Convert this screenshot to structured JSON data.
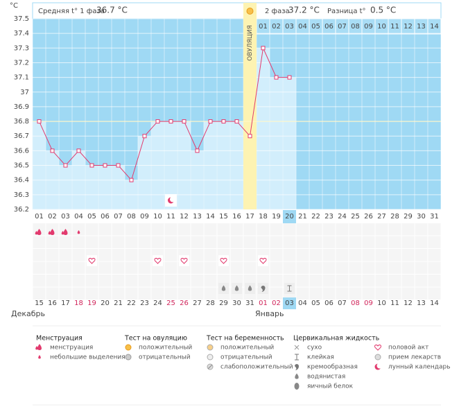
{
  "chart_data": {
    "type": "line",
    "y_unit": "°C",
    "header": {
      "phase1_label": "Средняя t° 1 фаза",
      "phase1_value": "36.7 °C",
      "phase2_label": "2 фаза",
      "phase2_value": "37.2 °C",
      "diff_label": "Разница t°",
      "diff_value": "0.5 °C"
    },
    "ovulation_label": "ОВУЛЯЦИЯ",
    "ovulation_day": "17",
    "current_day": "20",
    "categories": [
      "01",
      "02",
      "03",
      "04",
      "05",
      "06",
      "07",
      "08",
      "09",
      "10",
      "11",
      "12",
      "13",
      "14",
      "15",
      "16",
      "17",
      "18",
      "19",
      "20",
      "21",
      "22",
      "23",
      "24",
      "25",
      "26",
      "27",
      "28",
      "29",
      "30",
      "31"
    ],
    "phase2_days": [
      "01",
      "02",
      "03",
      "04",
      "05",
      "06",
      "07",
      "08",
      "09",
      "10",
      "11",
      "12",
      "13",
      "14"
    ],
    "values": [
      36.8,
      36.6,
      36.5,
      36.6,
      36.5,
      36.5,
      36.5,
      36.4,
      36.7,
      36.8,
      36.8,
      36.8,
      36.6,
      36.8,
      36.8,
      36.8,
      36.7,
      37.3,
      37.1,
      37.1,
      null,
      null,
      null,
      null,
      null,
      null,
      null,
      null,
      null,
      null,
      null
    ],
    "color": "#e23a6e",
    "ylim": [
      36.2,
      37.5
    ],
    "yticks": [
      36.2,
      36.3,
      36.4,
      36.5,
      36.6,
      36.7,
      36.8,
      36.9,
      37,
      37.1,
      37.2,
      37.3,
      37.4,
      37.5
    ],
    "cover_line": 36.8,
    "dates": [
      "15",
      "16",
      "17",
      "18",
      "19",
      "20",
      "21",
      "22",
      "23",
      "24",
      "25",
      "26",
      "27",
      "28",
      "29",
      "30",
      "31",
      "01",
      "02",
      "03",
      "04",
      "05",
      "06",
      "07",
      "08",
      "09",
      "10",
      "11",
      "12",
      "13",
      "14"
    ],
    "weekend": [
      false,
      false,
      false,
      true,
      true,
      false,
      false,
      false,
      false,
      false,
      true,
      true,
      false,
      false,
      false,
      false,
      false,
      true,
      true,
      false,
      false,
      false,
      false,
      false,
      true,
      true,
      false,
      false,
      false,
      false,
      false
    ],
    "months": [
      "Декабрь",
      "Январь"
    ],
    "menstruation": [
      "менструация",
      "менструация",
      "менструация",
      "небольшие выделения",
      null,
      null,
      null,
      null,
      null,
      null,
      null,
      null,
      null,
      null,
      null,
      null,
      null,
      null,
      null,
      null,
      null,
      null,
      null,
      null,
      null,
      null,
      null,
      null,
      null,
      null,
      null
    ],
    "intercourse": [
      null,
      null,
      null,
      null,
      "половой акт",
      null,
      null,
      null,
      null,
      "половой акт",
      null,
      "половой акт",
      null,
      null,
      "половой акт",
      null,
      null,
      "половой акт",
      null,
      null,
      null,
      null,
      null,
      null,
      null,
      null,
      null,
      null,
      null,
      null,
      null
    ],
    "fluid": [
      null,
      null,
      null,
      null,
      null,
      null,
      null,
      null,
      null,
      null,
      null,
      null,
      null,
      null,
      "водянистая",
      "водянистая",
      "водянистая",
      "кремообразная",
      null,
      "клейкая",
      null,
      null,
      null,
      null,
      null,
      null,
      null,
      null,
      null,
      null,
      null
    ],
    "lunar": [
      null,
      null,
      null,
      null,
      null,
      null,
      null,
      null,
      null,
      null,
      "лунный календарь",
      null,
      null,
      null,
      null,
      null,
      null,
      null,
      null,
      null,
      null,
      null,
      null,
      null,
      null,
      null,
      null,
      null,
      null,
      null,
      null
    ],
    "legend": [
      {
        "title": "Менструация",
        "items": [
          "менструация",
          "небольшие выделения"
        ]
      },
      {
        "title": "Тест на овуляцию",
        "items": [
          "положительный",
          "отрицательный"
        ]
      },
      {
        "title": "Тест на беременность",
        "items": [
          "положительный",
          "отрицательный",
          "слабоположительный"
        ]
      },
      {
        "title": "Цервикальная жидкость",
        "items": [
          "сухо",
          "клейкая",
          "кремообразная",
          "водянистая",
          "яичный белок"
        ]
      },
      {
        "items": [
          "половой акт",
          "прием лекарств",
          "лунный календарь"
        ]
      }
    ]
  }
}
